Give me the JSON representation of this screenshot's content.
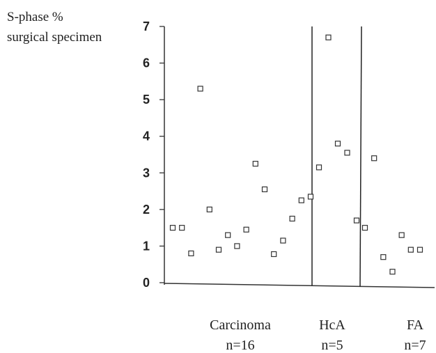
{
  "chart_data": {
    "type": "scatter",
    "ylabel_lines": [
      "S-phase %",
      "surgical specimen"
    ],
    "ylim": [
      0,
      7
    ],
    "yticks": [
      0,
      1,
      2,
      3,
      4,
      5,
      6,
      7
    ],
    "grid": false,
    "groups": [
      {
        "name": "Carcinoma",
        "n_label": "n=16"
      },
      {
        "name": "HcA",
        "n_label": "n=5"
      },
      {
        "name": "FA",
        "n_label": "n=7"
      }
    ],
    "series": [
      {
        "group": "Carcinoma",
        "values": [
          1.5,
          1.5,
          0.8,
          5.3,
          2.0,
          0.9,
          1.3,
          1.0,
          1.45,
          3.25,
          2.55,
          0.78,
          1.15,
          1.75,
          2.25,
          2.35
        ]
      },
      {
        "group": "HcA",
        "values": [
          3.15,
          6.7,
          3.8,
          3.55,
          1.7
        ]
      },
      {
        "group": "FA",
        "values": [
          1.5,
          3.4,
          0.7,
          0.3,
          1.3,
          0.9,
          0.9
        ]
      }
    ]
  }
}
